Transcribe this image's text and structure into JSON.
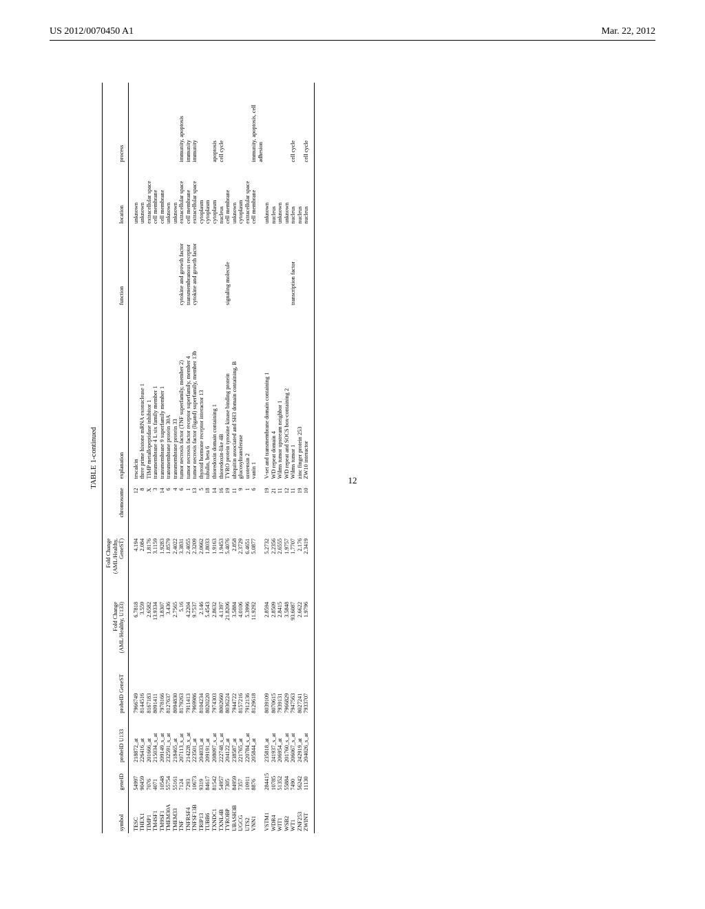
{
  "header": {
    "left": "US 2012/0070450 A1",
    "right": "Mar. 22, 2012"
  },
  "page_number": "12",
  "table": {
    "caption": "TABLE 1-continued",
    "columns": [
      "symbol",
      "geneID",
      "probeID U133",
      "probeID GeneST",
      "Fold Change (AML/Healthy, U133)",
      "Fold Change (AML/Healthy, GeneST)",
      "chromosome",
      "explanation",
      "function",
      "location",
      "process"
    ],
    "rows": [
      [
        "TESC",
        "54997",
        "218872_at",
        "7966749",
        "6.7818",
        "4.194",
        "12",
        "tescalcin",
        "",
        "unknown",
        ""
      ],
      [
        "THEX1",
        "90459",
        "226416_at",
        "8144516",
        "3.559",
        "2.084",
        "8",
        "three prime histone mRNA exonuclease 1",
        "",
        "unknown",
        ""
      ],
      [
        "TIMP1",
        "7076",
        "201666_at",
        "8167183",
        "2.6582",
        "1.8176",
        "X",
        "TIMP metallopeptidase inhibitor 1",
        "",
        "extracellular space",
        ""
      ],
      [
        "TM4SF1",
        "4071",
        "215034_s_at",
        "8091411",
        "13.9334",
        "3.1159",
        "3",
        "transmembrane 4 L six family member 1",
        "",
        "cell membrane",
        ""
      ],
      [
        "TM9SF1",
        "10548",
        "209149_s_at",
        "7978166",
        "3.8307",
        "1.9283",
        "14",
        "transmembrane 9 superfamily member 1",
        "",
        "cell membrane",
        ""
      ],
      [
        "TMEM30A",
        "55754",
        "232591_s_at",
        "8127637",
        "3.436",
        "1.8579",
        "6",
        "transmembrane protein 30A",
        "",
        "unknown",
        ""
      ],
      [
        "TMEM33",
        "55161",
        "218465_at",
        "8094830",
        "2.7565",
        "2.4022",
        "4",
        "transmembrane protein 33",
        "",
        "unknown",
        ""
      ],
      [
        "TNF",
        "7124",
        "207113_s_at",
        "8179263",
        "5.16",
        "3.3831",
        "6",
        "tumor necrosis factor (TNF superfamily, member 2)",
        "cytokine and growth factor",
        "extracellular space",
        "immunity, apoptosis"
      ],
      [
        "TNFRSF4",
        "7293",
        "214228_x_at",
        "7911413",
        "4.2204",
        "2.4055",
        "1",
        "tumor necrosis factor receptor superfamily, member 4",
        "transmembranous receptor",
        "cell membrane",
        "immunity"
      ],
      [
        "TNFSF13B",
        "10673",
        "223501_at",
        "7969986",
        "9.7537",
        "2.3209",
        "13",
        "tumor necrosis factor (ligand) superfamily, member 13b",
        "cytokine and growth factor",
        "extracellular space",
        "immunity"
      ],
      [
        "TRIP13",
        "9319",
        "204033_at",
        "8104234",
        "2.146",
        "2.0662",
        "5",
        "thyroid hormone receptor interactor 13",
        "",
        "cytoplasm",
        ""
      ],
      [
        "TUBB6",
        "84617",
        "209191_at",
        "8020220",
        "5.4543",
        "1.8033",
        "18",
        "tubulin, beta 6",
        "",
        "cytoplasm",
        ""
      ],
      [
        "TXNDC1",
        "81542",
        "208097_s_at",
        "7974303",
        "2.8632",
        "1.9163",
        "14",
        "thioredoxin domain containing 1",
        "",
        "cytoplasm",
        "apoptosis"
      ],
      [
        "TXNL4B",
        "54957",
        "222748_s_at",
        "8002660",
        "4.1397",
        "1.9453",
        "16",
        "thioredoxin-like 4B",
        "",
        "nucleus",
        "cell cycle"
      ],
      [
        "TYROBP",
        "7305",
        "204122_at",
        "8036224",
        "21.8206",
        "5.4076",
        "19",
        "TYRO protein tyrosine kinase binding protein",
        "signaling molecule",
        "cell membrane",
        ""
      ],
      [
        "UBASH3B",
        "84959",
        "238587_at",
        "7944722",
        "3.5884",
        "2.858",
        "11",
        "ubiquitin associated and SH3 domain containing, B",
        "",
        "unknown",
        ""
      ],
      [
        "UGCG",
        "7357",
        "221765_at",
        "8157216",
        "4.0106",
        "2.3729",
        "9",
        "glucosyltransferase",
        "",
        "cytoplasm",
        ""
      ],
      [
        "UTS2",
        "10911",
        "220784_s_at",
        "7912136",
        "5.3996",
        "6.4651",
        "1",
        "urotensin 2",
        "",
        "extracellular space",
        ""
      ],
      [
        "VNN1",
        "8876",
        "205844_at",
        "8129618",
        "11.9292",
        "5.0877",
        "6",
        "vanin 1",
        "",
        "cell membrane",
        "immunity, apoptosis, cell adhesion"
      ],
      [
        "VSTM1",
        "284415",
        "235818_at",
        "8039109",
        "2.8594",
        "5.2732",
        "19",
        "V-set and transmembrane domain containing 1",
        "",
        "unknown",
        ""
      ],
      [
        "WDR4",
        "10785",
        "241937_s_at",
        "8070615",
        "2.8509",
        "2.2356",
        "21",
        "WD repeat domain 4",
        "",
        "nucleus",
        ""
      ],
      [
        "WIT1",
        "51352",
        "206954_at",
        "7939131",
        "2.8415",
        "2.6555",
        "11",
        "Wilms tumor upstream neighbor 1",
        "",
        "unknown",
        ""
      ],
      [
        "WSB2",
        "55884",
        "201760_s_at",
        "7966829",
        "3.5848",
        "1.9757",
        "12",
        "WD repeat and SOCS box-containing 2",
        "",
        "unknown",
        ""
      ],
      [
        "WT1",
        "7490",
        "206067_s_at",
        "7947563",
        "93.6087",
        "1.7707",
        "11",
        "Wilms tumor 1",
        "transcription factor",
        "nucleus",
        "cell cycle"
      ],
      [
        "ZNF253",
        "56242",
        "242919_at",
        "8027241",
        "2.6622",
        "2.176",
        "19",
        "zinc finger protein 253",
        "",
        "nucleus",
        ""
      ],
      [
        "ZWINT",
        "11130",
        "204026_s_at",
        "7933707",
        "1.9796",
        "2.3419",
        "10",
        "ZW10 interactor",
        "",
        "nucleus",
        "cell cycle"
      ]
    ]
  }
}
